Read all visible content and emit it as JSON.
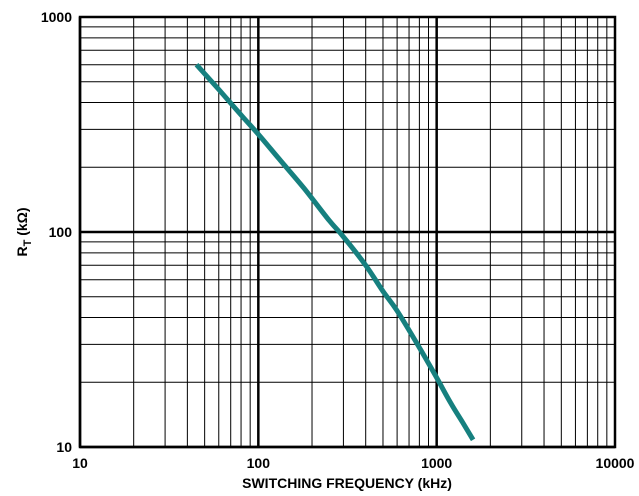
{
  "chart_data": {
    "type": "line",
    "title": "",
    "xlabel": "SWITCHING FREQUENCY (kHz)",
    "ylabel_main": "R",
    "ylabel_sub": "T",
    "ylabel_unit": " (kΩ)",
    "x_scale": "log",
    "y_scale": "log",
    "xlim": [
      10,
      10000
    ],
    "ylim": [
      10,
      1000
    ],
    "x_ticks": [
      10,
      100,
      1000,
      10000
    ],
    "x_tick_labels": [
      "10",
      "100",
      "1000",
      "10000"
    ],
    "y_ticks": [
      10,
      100,
      1000
    ],
    "y_tick_labels": [
      "10",
      "100",
      "1000"
    ],
    "grid": true,
    "legend": "none",
    "series": [
      {
        "color": "#16807f",
        "x": [
          45,
          60,
          80,
          100,
          130,
          180,
          250,
          300,
          400,
          500,
          600,
          800,
          1000,
          1200,
          1400,
          1600
        ],
        "y": [
          600,
          460,
          350,
          285,
          220,
          160,
          113,
          95,
          70,
          53,
          43,
          29,
          21,
          16,
          13,
          10.8
        ]
      }
    ]
  }
}
